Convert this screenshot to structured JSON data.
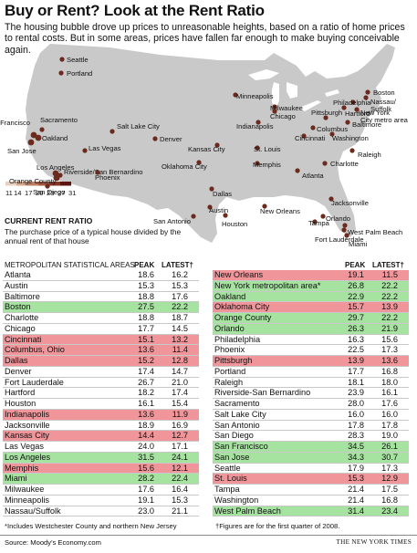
{
  "title": "Buy or Rent? Look at the Rent Ratio",
  "subtitle": "The housing bubble drove up prices to unreasonable heights, based on a ratio of home prices to rental costs. But in some areas, prices have fallen far enough to make buying conceivable again.",
  "legend": {
    "ticks": [
      "11",
      "14",
      "17",
      "20",
      "23",
      "27",
      "31"
    ],
    "colors": [
      "#e8d0bf",
      "#d3a78c",
      "#be7d62",
      "#a45640",
      "#873325",
      "#5e1512"
    ],
    "title": "CURRENT RENT RATIO",
    "description": "The purchase price of a typical house divided by the annual rent of that house"
  },
  "colors": {
    "land": "#c9c9c9",
    "better": "#a6e3a0",
    "worse": "#f0959a",
    "water": "#ffffff"
  },
  "headers": {
    "area": "METROPOLITAN STATISTICAL AREAS",
    "peak": "PEAK",
    "latest": "LATEST†"
  },
  "footnotes": {
    "left": "*Includes Westchester County and northern New Jersey",
    "right": "†Figures are for the first quarter of 2008."
  },
  "source": "Source: Moody's Economy.com",
  "credit": "THE NEW YORK TIMES",
  "chart_data": {
    "type": "table",
    "columns": [
      "METROPOLITAN STATISTICAL AREAS",
      "PEAK",
      "LATEST†"
    ],
    "rows": [
      {
        "name": "Atlanta",
        "peak": "18.6",
        "latest": "16.2",
        "hl": ""
      },
      {
        "name": "Austin",
        "peak": "15.3",
        "latest": "15.3",
        "hl": ""
      },
      {
        "name": "Baltimore",
        "peak": "18.8",
        "latest": "17.6",
        "hl": ""
      },
      {
        "name": "Boston",
        "peak": "27.5",
        "latest": "22.2",
        "hl": "better"
      },
      {
        "name": "Charlotte",
        "peak": "18.8",
        "latest": "18.7",
        "hl": ""
      },
      {
        "name": "Chicago",
        "peak": "17.7",
        "latest": "14.5",
        "hl": ""
      },
      {
        "name": "Cincinnati",
        "peak": "15.1",
        "latest": "13.2",
        "hl": "worse"
      },
      {
        "name": "Columbus, Ohio",
        "peak": "13.6",
        "latest": "11.4",
        "hl": "worse"
      },
      {
        "name": "Dallas",
        "peak": "15.2",
        "latest": "12.8",
        "hl": "worse"
      },
      {
        "name": "Denver",
        "peak": "17.4",
        "latest": "14.7",
        "hl": ""
      },
      {
        "name": "Fort Lauderdale",
        "peak": "26.7",
        "latest": "21.0",
        "hl": ""
      },
      {
        "name": "Hartford",
        "peak": "18.2",
        "latest": "17.4",
        "hl": ""
      },
      {
        "name": "Houston",
        "peak": "16.1",
        "latest": "15.4",
        "hl": ""
      },
      {
        "name": "Indianapolis",
        "peak": "13.6",
        "latest": "11.9",
        "hl": "worse"
      },
      {
        "name": "Jacksonville",
        "peak": "18.9",
        "latest": "16.9",
        "hl": ""
      },
      {
        "name": "Kansas City",
        "peak": "14.4",
        "latest": "12.7",
        "hl": "worse"
      },
      {
        "name": "Las Vegas",
        "peak": "24.0",
        "latest": "17.1",
        "hl": ""
      },
      {
        "name": "Los Angeles",
        "peak": "31.5",
        "latest": "24.1",
        "hl": "better"
      },
      {
        "name": "Memphis",
        "peak": "15.6",
        "latest": "12.1",
        "hl": "worse"
      },
      {
        "name": "Miami",
        "peak": "28.2",
        "latest": "22.4",
        "hl": "better"
      },
      {
        "name": "Milwaukee",
        "peak": "17.6",
        "latest": "16.4",
        "hl": ""
      },
      {
        "name": "Minneapolis",
        "peak": "19.1",
        "latest": "15.3",
        "hl": ""
      },
      {
        "name": "Nassau/Suffolk",
        "peak": "23.0",
        "latest": "21.1",
        "hl": ""
      },
      {
        "name": "New Orleans",
        "peak": "19.1",
        "latest": "11.5",
        "hl": "worse"
      },
      {
        "name": "New York metropolitan area*",
        "peak": "26.8",
        "latest": "22.2",
        "hl": "better"
      },
      {
        "name": "Oakland",
        "peak": "22.9",
        "latest": "22.2",
        "hl": "better"
      },
      {
        "name": "Oklahoma City",
        "peak": "15.7",
        "latest": "13.9",
        "hl": "worse"
      },
      {
        "name": "Orange County",
        "peak": "29.7",
        "latest": "22.2",
        "hl": "better"
      },
      {
        "name": "Orlando",
        "peak": "26.3",
        "latest": "21.9",
        "hl": "better"
      },
      {
        "name": "Philadelphia",
        "peak": "16.3",
        "latest": "15.6",
        "hl": ""
      },
      {
        "name": "Phoenix",
        "peak": "22.5",
        "latest": "17.3",
        "hl": ""
      },
      {
        "name": "Pittsburgh",
        "peak": "13.9",
        "latest": "13.6",
        "hl": "worse"
      },
      {
        "name": "Portland",
        "peak": "17.7",
        "latest": "16.8",
        "hl": ""
      },
      {
        "name": "Raleigh",
        "peak": "18.1",
        "latest": "18.0",
        "hl": ""
      },
      {
        "name": "Riverside-San Bernardino",
        "peak": "23.9",
        "latest": "16.1",
        "hl": ""
      },
      {
        "name": "Sacramento",
        "peak": "28.0",
        "latest": "17.6",
        "hl": ""
      },
      {
        "name": "Salt Lake City",
        "peak": "16.0",
        "latest": "16.0",
        "hl": ""
      },
      {
        "name": "San Antonio",
        "peak": "17.8",
        "latest": "17.8",
        "hl": ""
      },
      {
        "name": "San Diego",
        "peak": "28.3",
        "latest": "19.0",
        "hl": ""
      },
      {
        "name": "San Francisco",
        "peak": "34.5",
        "latest": "26.1",
        "hl": "better"
      },
      {
        "name": "San Jose",
        "peak": "34.3",
        "latest": "30.7",
        "hl": "better"
      },
      {
        "name": "Seattle",
        "peak": "17.9",
        "latest": "17.3",
        "hl": ""
      },
      {
        "name": "St. Louis",
        "peak": "15.3",
        "latest": "12.9",
        "hl": "worse"
      },
      {
        "name": "Tampa",
        "peak": "21.4",
        "latest": "17.5",
        "hl": ""
      },
      {
        "name": "Washington",
        "peak": "21.4",
        "latest": "16.8",
        "hl": ""
      },
      {
        "name": "West Palm Beach",
        "peak": "31.4",
        "latest": "23.4",
        "hl": "better"
      }
    ],
    "map_labels": [
      "Seattle",
      "Portland",
      "San Francisco",
      "Sacramento",
      "Oakland",
      "San Jose",
      "Los Angeles",
      "Riverside/San Bernardino",
      "Orange County",
      "San Diego",
      "Las Vegas",
      "Phoenix",
      "Salt Lake City",
      "Denver",
      "Minneapolis",
      "Milwaukee",
      "Chicago",
      "Indianapolis",
      "Kansas City",
      "St. Louis",
      "Oklahoma City",
      "Dallas",
      "Austin",
      "San Antonio",
      "Houston",
      "Memphis",
      "New Orleans",
      "Atlanta",
      "Cincinnati",
      "Columbus",
      "Pittsburgh",
      "Hartford",
      "Boston",
      "Nassau/ Suffolk",
      "New York City metro area",
      "Philadelphia",
      "Baltimore",
      "Washington",
      "Raleigh",
      "Charlotte",
      "Jacksonville",
      "Orlando",
      "Tampa",
      "West Palm Beach",
      "Fort Lauderdale",
      "Miami"
    ]
  }
}
